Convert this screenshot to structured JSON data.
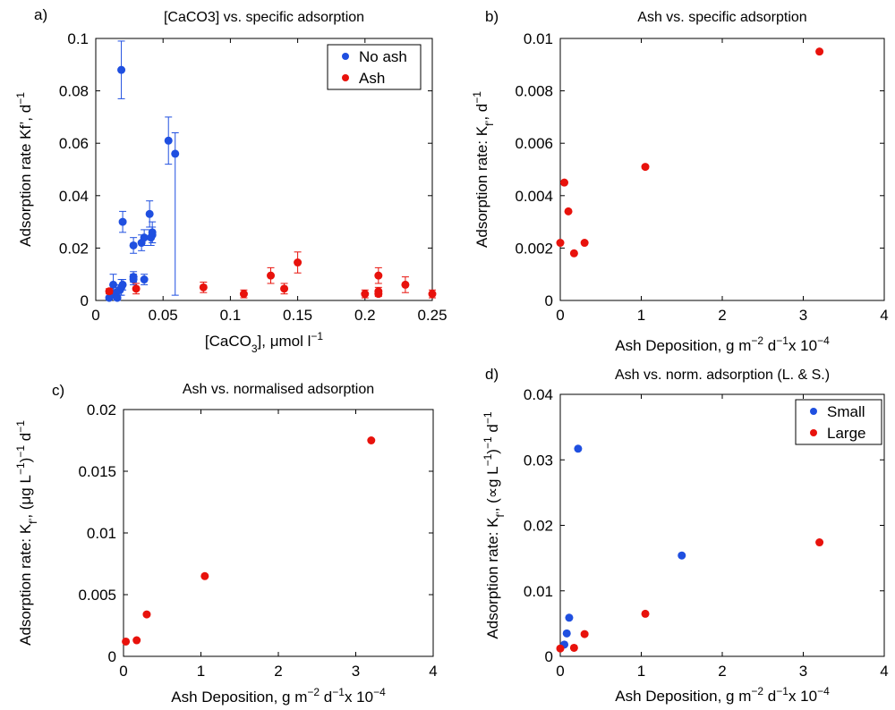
{
  "chart_data": [
    {
      "type": "scatter",
      "panel_label": "a)",
      "title": "[CaCO3] vs. specific adsorption",
      "xlabel": {
        "base": "[CaCO",
        "sub": "3",
        "rest": "], μmol l",
        "sup": "−1"
      },
      "ylabel": {
        "base": "Adsorption rate Kf’, d",
        "sup": "−1"
      },
      "xlim": [
        0,
        0.25
      ],
      "ylim": [
        0,
        0.1
      ],
      "xticks": [
        "0",
        "0.05",
        "0.1",
        "0.15",
        "0.2",
        "0.25"
      ],
      "yticks": [
        "0",
        "0.02",
        "0.04",
        "0.06",
        "0.08",
        "0.1"
      ],
      "xtick_values": [
        0,
        0.05,
        0.1,
        0.15,
        0.2,
        0.25
      ],
      "ytick_values": [
        0,
        0.02,
        0.04,
        0.06,
        0.08,
        0.1
      ],
      "legend": {
        "position": "top-right"
      },
      "series": [
        {
          "name": "No ash",
          "color": "#1f4fe0",
          "points": [
            {
              "x": 0.01,
              "y": 0.001,
              "err": 0.0005
            },
            {
              "x": 0.012,
              "y": 0.002,
              "err": 0.001
            },
            {
              "x": 0.013,
              "y": 0.006,
              "err": 0.004
            },
            {
              "x": 0.015,
              "y": 0.003,
              "err": 0.002
            },
            {
              "x": 0.016,
              "y": 0.001,
              "err": 0.001
            },
            {
              "x": 0.018,
              "y": 0.004,
              "err": 0.002
            },
            {
              "x": 0.019,
              "y": 0.005,
              "err": 0.003
            },
            {
              "x": 0.019,
              "y": 0.088,
              "err": 0.011
            },
            {
              "x": 0.02,
              "y": 0.03,
              "err": 0.004
            },
            {
              "x": 0.02,
              "y": 0.006,
              "err": 0.002
            },
            {
              "x": 0.028,
              "y": 0.021,
              "err": 0.003
            },
            {
              "x": 0.028,
              "y": 0.009,
              "err": 0.002
            },
            {
              "x": 0.028,
              "y": 0.008,
              "err": 0.002
            },
            {
              "x": 0.034,
              "y": 0.022,
              "err": 0.003
            },
            {
              "x": 0.036,
              "y": 0.024,
              "err": 0.003
            },
            {
              "x": 0.036,
              "y": 0.008,
              "err": 0.002
            },
            {
              "x": 0.04,
              "y": 0.033,
              "err": 0.005
            },
            {
              "x": 0.041,
              "y": 0.024,
              "err": 0.003
            },
            {
              "x": 0.042,
              "y": 0.025,
              "err": 0.003
            },
            {
              "x": 0.042,
              "y": 0.026,
              "err": 0.004
            },
            {
              "x": 0.054,
              "y": 0.061,
              "err": 0.009
            },
            {
              "x": 0.059,
              "y": 0.056,
              "err": 0.008,
              "err_low": 0.054
            }
          ]
        },
        {
          "name": "Ash",
          "color": "#e8120c",
          "points": [
            {
              "x": 0.01,
              "y": 0.0035,
              "err": 0.001
            },
            {
              "x": 0.03,
              "y": 0.0045,
              "err": 0.002
            },
            {
              "x": 0.08,
              "y": 0.005,
              "err": 0.002
            },
            {
              "x": 0.11,
              "y": 0.0025,
              "err": 0.0015
            },
            {
              "x": 0.13,
              "y": 0.0095,
              "err": 0.003
            },
            {
              "x": 0.14,
              "y": 0.0045,
              "err": 0.002
            },
            {
              "x": 0.15,
              "y": 0.0145,
              "err": 0.004
            },
            {
              "x": 0.2,
              "y": 0.0025,
              "err": 0.0015
            },
            {
              "x": 0.21,
              "y": 0.0035,
              "err": 0.0015
            },
            {
              "x": 0.21,
              "y": 0.0025,
              "err": 0.001
            },
            {
              "x": 0.21,
              "y": 0.0095,
              "err": 0.003
            },
            {
              "x": 0.23,
              "y": 0.006,
              "err": 0.003
            },
            {
              "x": 0.25,
              "y": 0.0025,
              "err": 0.0015
            }
          ]
        }
      ]
    },
    {
      "type": "scatter",
      "panel_label": "b)",
      "title": "Ash vs. specific adsorption",
      "xlabel": {
        "base": "Ash Deposition, g m",
        "sup": "−2",
        "rest": " d",
        "sup2": "−1",
        "rest2": "x 10",
        "sup3": "−4"
      },
      "ylabel": {
        "base": "Adsorption rate: K",
        "sub": "f’",
        "rest": ", d",
        "sup": "−1"
      },
      "xlim": [
        0,
        4
      ],
      "ylim": [
        0,
        0.01
      ],
      "xticks": [
        "0",
        "1",
        "2",
        "3",
        "4"
      ],
      "yticks": [
        "0",
        "0.002",
        "0.004",
        "0.006",
        "0.008",
        "0.01"
      ],
      "xtick_values": [
        0,
        1,
        2,
        3,
        4
      ],
      "ytick_values": [
        0,
        0.002,
        0.004,
        0.006,
        0.008,
        0.01
      ],
      "series": [
        {
          "color": "#e8120c",
          "points": [
            {
              "x": 0.0,
              "y": 0.0022
            },
            {
              "x": 0.05,
              "y": 0.0045
            },
            {
              "x": 0.1,
              "y": 0.0034
            },
            {
              "x": 0.17,
              "y": 0.0018
            },
            {
              "x": 0.3,
              "y": 0.0022
            },
            {
              "x": 1.05,
              "y": 0.0051
            },
            {
              "x": 3.2,
              "y": 0.0095
            }
          ]
        }
      ]
    },
    {
      "type": "scatter",
      "panel_label": "c)",
      "title": "Ash vs. normalised adsorption",
      "xlabel": {
        "base": "Ash Deposition, g m",
        "sup": "−2",
        "rest": " d",
        "sup2": "−1",
        "rest2": "x 10",
        "sup3": "−4"
      },
      "ylabel": {
        "base": "Adsorption rate: K",
        "sub": "f’",
        "rest": ", (μg L",
        "sup": "−1",
        "rest2": ")",
        "sup2": "−1",
        "rest3": " d",
        "sup3": "−1"
      },
      "xlim": [
        0,
        4
      ],
      "ylim": [
        0,
        0.02
      ],
      "xticks": [
        "0",
        "1",
        "2",
        "3",
        "4"
      ],
      "yticks": [
        "0",
        "0.005",
        "0.01",
        "0.015",
        "0.02"
      ],
      "xtick_values": [
        0,
        1,
        2,
        3,
        4
      ],
      "ytick_values": [
        0,
        0.005,
        0.01,
        0.015,
        0.02
      ],
      "series": [
        {
          "color": "#e8120c",
          "points": [
            {
              "x": 0.03,
              "y": 0.0012
            },
            {
              "x": 0.17,
              "y": 0.0013
            },
            {
              "x": 0.3,
              "y": 0.0034
            },
            {
              "x": 1.05,
              "y": 0.0065
            },
            {
              "x": 3.2,
              "y": 0.0175
            }
          ]
        }
      ]
    },
    {
      "type": "scatter",
      "panel_label": "d)",
      "title": "Ash vs. norm. adsorption  (L. & S.)",
      "xlabel": {
        "base": "Ash Deposition, g m",
        "sup": "−2",
        "rest": " d",
        "sup2": "−1",
        "rest2": "x 10",
        "sup3": "−4"
      },
      "ylabel": {
        "base": "Adsorption rate: K",
        "sub": "f’",
        "rest": ", (∝g L",
        "sup": "−1",
        "rest2": ")",
        "sup2": "−1",
        "rest3": " d",
        "sup3": "−1"
      },
      "xlim": [
        0,
        4
      ],
      "ylim": [
        0,
        0.04
      ],
      "xticks": [
        "0",
        "1",
        "2",
        "3",
        "4"
      ],
      "yticks": [
        "0",
        "0.01",
        "0.02",
        "0.03",
        "0.04"
      ],
      "xtick_values": [
        0,
        1,
        2,
        3,
        4
      ],
      "ytick_values": [
        0,
        0.01,
        0.02,
        0.03,
        0.04
      ],
      "legend": {
        "position": "top-right"
      },
      "series": [
        {
          "name": "Small",
          "color": "#1f4fe0",
          "points": [
            {
              "x": 0.05,
              "y": 0.0018
            },
            {
              "x": 0.08,
              "y": 0.0035
            },
            {
              "x": 0.11,
              "y": 0.0059
            },
            {
              "x": 0.22,
              "y": 0.0317
            },
            {
              "x": 1.5,
              "y": 0.0154
            }
          ]
        },
        {
          "name": "Large",
          "color": "#e8120c",
          "points": [
            {
              "x": 0.0,
              "y": 0.0012
            },
            {
              "x": 0.17,
              "y": 0.0013
            },
            {
              "x": 0.3,
              "y": 0.0034
            },
            {
              "x": 1.05,
              "y": 0.0065
            },
            {
              "x": 3.2,
              "y": 0.0174
            }
          ]
        }
      ]
    }
  ]
}
